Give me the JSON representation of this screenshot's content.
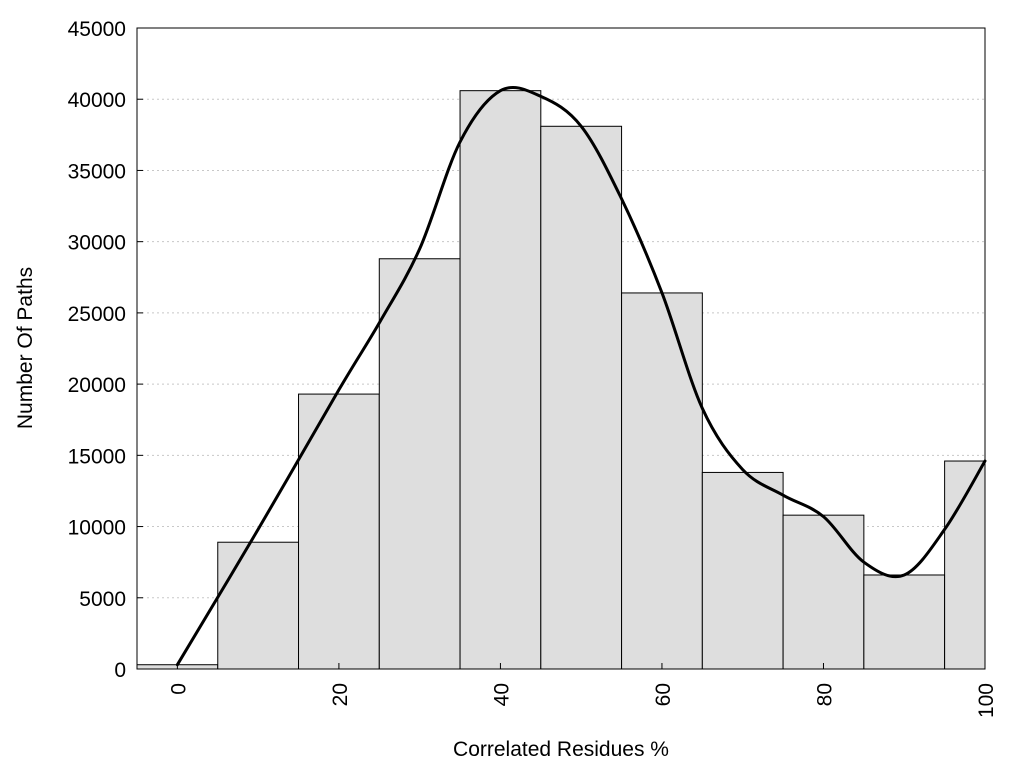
{
  "chart_data": {
    "type": "bar",
    "xlabel": "Correlated Residues %",
    "ylabel": "Number Of Paths",
    "xlim": [
      -5,
      100
    ],
    "ylim": [
      0,
      45000
    ],
    "grid": true,
    "x_ticks": [
      "0",
      "20",
      "40",
      "60",
      "80",
      "100"
    ],
    "y_ticks": [
      "0",
      "5000",
      "10000",
      "15000",
      "20000",
      "25000",
      "30000",
      "35000",
      "40000",
      "45000"
    ],
    "categories": [
      0,
      10,
      20,
      30,
      40,
      50,
      60,
      70,
      80,
      90,
      100
    ],
    "values": [
      300,
      8900,
      19300,
      28800,
      40600,
      38100,
      26400,
      13800,
      10800,
      6600,
      14600
    ],
    "series": [
      {
        "type": "line",
        "smooth": true,
        "x": [
          0,
          10,
          20,
          25,
          30,
          35,
          40,
          45,
          50,
          55,
          60,
          65,
          70,
          75,
          80,
          85,
          90,
          95,
          100
        ],
        "y": [
          300,
          9800,
          19600,
          24300,
          29500,
          37000,
          40600,
          40200,
          38100,
          33000,
          26400,
          18300,
          14000,
          12200,
          10700,
          7500,
          6600,
          9800,
          14600
        ]
      }
    ],
    "colors": {
      "bar_fill": "#dedede",
      "bar_edge": "#000000",
      "line": "#000000",
      "grid": "#c8c8c8"
    }
  }
}
